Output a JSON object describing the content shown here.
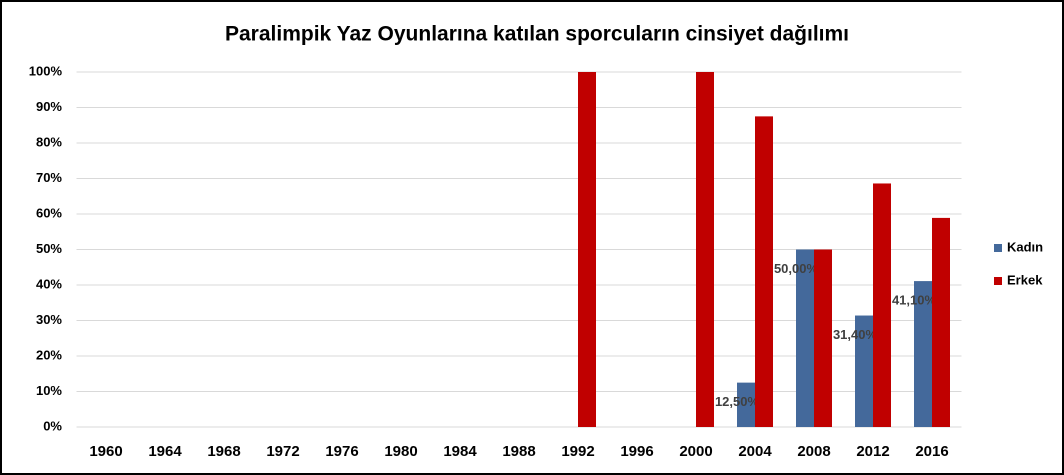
{
  "chart_data": {
    "type": "bar",
    "title": "Paralimpik Yaz Oyunlarına katılan sporcuların cinsiyet dağılımı",
    "categories": [
      "1960",
      "1964",
      "1968",
      "1972",
      "1976",
      "1980",
      "1984",
      "1988",
      "1992",
      "1996",
      "2000",
      "2004",
      "2008",
      "2012",
      "2016"
    ],
    "series": [
      {
        "name": "Kadın",
        "color": "#44699b",
        "values": [
          null,
          null,
          null,
          null,
          null,
          null,
          null,
          null,
          null,
          null,
          null,
          12.5,
          50,
          31.4,
          41.1
        ],
        "value_labels": [
          null,
          null,
          null,
          null,
          null,
          null,
          null,
          null,
          null,
          null,
          null,
          "12,50%",
          "50,00%",
          "31,40%",
          "41,10%"
        ]
      },
      {
        "name": "Erkek",
        "color": "#c00000",
        "values": [
          null,
          null,
          null,
          null,
          null,
          null,
          null,
          null,
          100,
          null,
          100,
          87.5,
          50,
          68.6,
          58.9
        ]
      }
    ],
    "ylim": [
      0,
      100
    ],
    "yticks": [
      {
        "value": 0,
        "label": "0%"
      },
      {
        "value": 10,
        "label": "10%"
      },
      {
        "value": 20,
        "label": "20%"
      },
      {
        "value": 30,
        "label": "30%"
      },
      {
        "value": 40,
        "label": "40%"
      },
      {
        "value": 50,
        "label": "50%"
      },
      {
        "value": 60,
        "label": "60%"
      },
      {
        "value": 70,
        "label": "70%"
      },
      {
        "value": 80,
        "label": "80%"
      },
      {
        "value": 90,
        "label": "90%"
      },
      {
        "value": 100,
        "label": "100%"
      }
    ],
    "grid": true,
    "legend": "right"
  }
}
